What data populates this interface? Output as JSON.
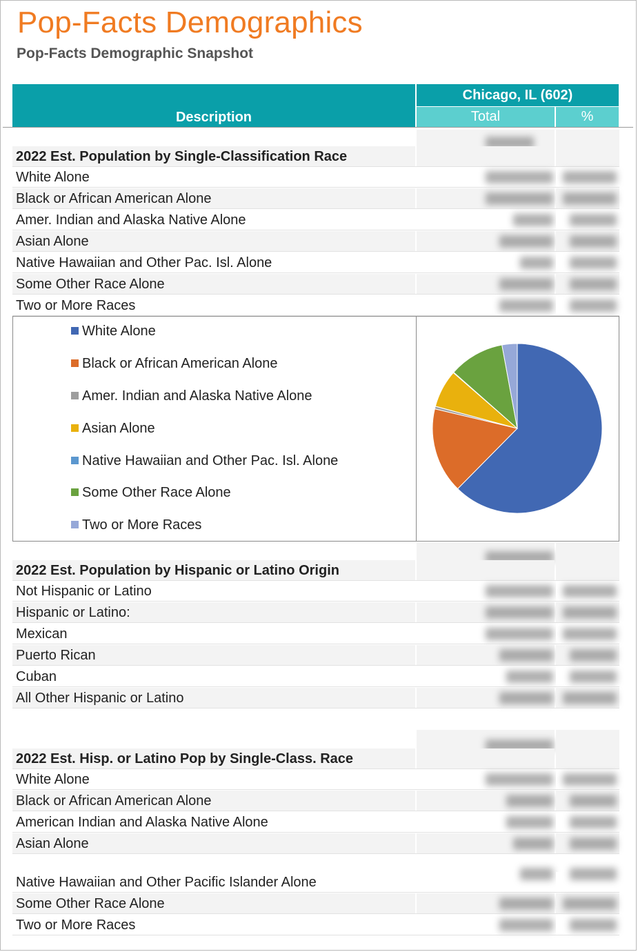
{
  "page": {
    "title": "Pop-Facts Demographics",
    "subtitle": "Pop-Facts Demographic Snapshot"
  },
  "header": {
    "description": "Description",
    "location": "Chicago, IL (602)",
    "total": "Total",
    "percent": "%"
  },
  "race": {
    "heading": "2022 Est. Population by Single-Classification Race",
    "rows": [
      "White Alone",
      "Black or African American Alone",
      "Amer. Indian and Alaska Native Alone",
      "Asian Alone",
      "Native Hawaiian and Other Pac. Isl. Alone",
      "Some Other Race Alone",
      "Two or More Races"
    ]
  },
  "chart_data": {
    "type": "pie",
    "labels": [
      "White Alone",
      "Black or African American Alone",
      "Amer. Indian and Alaska Native Alone",
      "Asian Alone",
      "Native Hawaiian and Other Pac. Isl. Alone",
      "Some Other Race Alone",
      "Two or More Races"
    ],
    "values": [
      62.4,
      16.3,
      0.5,
      7.2,
      0.1,
      10.6,
      2.9
    ],
    "colors": [
      "#4168b3",
      "#dc6c29",
      "#9e9e9e",
      "#e9b10d",
      "#5b97cf",
      "#6aa23f",
      "#96a8d8"
    ],
    "legend_position": "left"
  },
  "hispanic": {
    "heading": "2022 Est. Population by Hispanic or Latino Origin",
    "rows": [
      "Not Hispanic or Latino",
      "Hispanic or Latino:",
      "Mexican",
      "Puerto Rican",
      "Cuban",
      "All Other Hispanic or Latino"
    ]
  },
  "hisp_race": {
    "heading": "2022 Est. Hisp. or Latino Pop by Single-Class. Race",
    "rows": [
      "White Alone",
      "Black or African American Alone",
      "American Indian and Alaska Native Alone",
      "Asian Alone",
      "Native Hawaiian and Other Pacific Islander Alone",
      "Some Other Race Alone",
      "Two or More Races"
    ]
  }
}
